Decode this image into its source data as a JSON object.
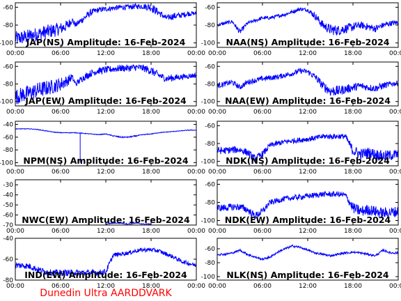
{
  "footer": "Dunedin Ultra AARDDVARK",
  "chart_data": [
    {
      "type": "line",
      "title": "JAP(NS) Amplitude: 16-Feb-2024",
      "ylim": [
        -105,
        -55
      ],
      "yticks": [
        "-60",
        "-80",
        "-100"
      ],
      "ytick_values": [
        -60,
        -80,
        -100
      ],
      "xticks": [
        "00:00",
        "06:00",
        "12:00",
        "18:00",
        "00:00"
      ],
      "xtick_values": [
        0,
        6,
        12,
        18,
        24
      ],
      "series": [
        {
          "color": "#0000ff",
          "x": [
            0,
            1,
            2,
            3,
            4,
            5,
            6,
            7,
            7.5,
            8,
            9,
            10,
            11,
            12,
            13,
            14,
            15,
            16,
            17,
            18,
            19,
            20,
            21,
            22,
            23,
            24
          ],
          "y": [
            -95,
            -94,
            -92,
            -90,
            -88,
            -86,
            -84,
            -80,
            -74,
            -80,
            -73,
            -66,
            -63,
            -62,
            -61,
            -60,
            -60,
            -59,
            -59,
            -60,
            -66,
            -72,
            -70,
            -69,
            -67,
            -67
          ],
          "noise": [
            8,
            8,
            8,
            8,
            8,
            8,
            7,
            6,
            4,
            3,
            4,
            4,
            3,
            3,
            3,
            3,
            3,
            3,
            3,
            5,
            4,
            3,
            4,
            3,
            3,
            2
          ]
        }
      ]
    },
    {
      "type": "line",
      "title": "NAA(NS) Amplitude: 16-Feb-2024",
      "ylim": [
        -105,
        -55
      ],
      "yticks": [
        "-60",
        "-80",
        "-100"
      ],
      "ytick_values": [
        -60,
        -80,
        -100
      ],
      "xticks": [
        "00:00",
        "06:00",
        "12:00",
        "18:00",
        "00:00"
      ],
      "xtick_values": [
        0,
        6,
        12,
        18,
        24
      ],
      "series": [
        {
          "color": "#0000ff",
          "x": [
            0,
            1,
            2,
            3,
            4,
            5,
            6,
            7,
            8,
            9,
            10,
            11,
            12,
            13,
            14,
            15,
            16,
            17,
            18,
            19,
            20,
            21,
            22,
            23,
            24
          ],
          "y": [
            -80,
            -78,
            -76,
            -88,
            -78,
            -75,
            -72,
            -72,
            -70,
            -68,
            -65,
            -62,
            -63,
            -70,
            -80,
            -85,
            -86,
            -84,
            -82,
            -80,
            -82,
            -84,
            -80,
            -78,
            -77
          ],
          "noise": [
            2,
            2,
            2,
            3,
            2,
            2,
            2,
            2,
            2,
            2,
            2,
            2,
            2,
            4,
            5,
            6,
            6,
            5,
            5,
            4,
            4,
            4,
            3,
            3,
            3
          ]
        }
      ]
    },
    {
      "type": "line",
      "title": "JAP(EW) Amplitude: 16-Feb-2024",
      "ylim": [
        -105,
        -55
      ],
      "yticks": [
        "-60",
        "-80",
        "-100"
      ],
      "ytick_values": [
        -60,
        -80,
        -100
      ],
      "xticks": [
        "00:00",
        "06:00",
        "12:00",
        "18:00",
        "00:00"
      ],
      "xtick_values": [
        0,
        6,
        12,
        18,
        24
      ],
      "series": [
        {
          "color": "#0000ff",
          "x": [
            0,
            1,
            2,
            3,
            4,
            5,
            6,
            7,
            7.5,
            8,
            9,
            10,
            11,
            12,
            13,
            14,
            15,
            16,
            17,
            18,
            19,
            20,
            21,
            22,
            23,
            24
          ],
          "y": [
            -95,
            -92,
            -90,
            -87,
            -85,
            -83,
            -80,
            -76,
            -72,
            -80,
            -73,
            -68,
            -65,
            -64,
            -63,
            -62,
            -62,
            -61,
            -62,
            -65,
            -70,
            -74,
            -73,
            -72,
            -71,
            -70
          ],
          "noise": [
            9,
            9,
            9,
            9,
            9,
            8,
            8,
            6,
            4,
            3,
            4,
            4,
            4,
            4,
            4,
            4,
            4,
            4,
            4,
            5,
            4,
            4,
            4,
            3,
            3,
            3
          ]
        }
      ]
    },
    {
      "type": "line",
      "title": "NAA(EW) Amplitude: 16-Feb-2024",
      "ylim": [
        -105,
        -55
      ],
      "yticks": [
        "-60",
        "-80",
        "-100"
      ],
      "ytick_values": [
        -60,
        -80,
        -100
      ],
      "xticks": [
        "00:00",
        "06:00",
        "12:00",
        "18:00",
        "00:00"
      ],
      "xtick_values": [
        0,
        6,
        12,
        18,
        24
      ],
      "series": [
        {
          "color": "#0000ff",
          "x": [
            0,
            1,
            2,
            3,
            4,
            5,
            6,
            7,
            8,
            9,
            10,
            11,
            12,
            13,
            14,
            15,
            16,
            17,
            18,
            19,
            20,
            21,
            22,
            23,
            24
          ],
          "y": [
            -82,
            -80,
            -78,
            -84,
            -78,
            -76,
            -74,
            -73,
            -72,
            -70,
            -68,
            -65,
            -66,
            -72,
            -82,
            -88,
            -88,
            -86,
            -84,
            -82,
            -84,
            -85,
            -82,
            -80,
            -79
          ],
          "noise": [
            3,
            3,
            3,
            3,
            3,
            3,
            3,
            3,
            3,
            3,
            3,
            3,
            3,
            4,
            5,
            6,
            6,
            5,
            5,
            4,
            4,
            4,
            4,
            3,
            3
          ]
        }
      ]
    },
    {
      "type": "line",
      "title": "NPM(NS) Amplitude: 16-Feb-2024",
      "ylim": [
        -105,
        -35
      ],
      "yticks": [
        "-40",
        "-60",
        "-80",
        "-100"
      ],
      "ytick_values": [
        -40,
        -60,
        -80,
        -100
      ],
      "xticks": [
        "00:00",
        "06:00",
        "12:00",
        "18:00",
        "00:00"
      ],
      "xtick_values": [
        0,
        6,
        12,
        18,
        24
      ],
      "series": [
        {
          "color": "#0000ff",
          "x": [
            0,
            1,
            2,
            3,
            4,
            5,
            6,
            7,
            8,
            9,
            10,
            11,
            12,
            13,
            14,
            15,
            16,
            17,
            18,
            19,
            20,
            21,
            22,
            23,
            24
          ],
          "y": [
            -47,
            -47,
            -47,
            -48,
            -50,
            -52,
            -53,
            -53,
            -53,
            -54,
            -55,
            -56,
            -55,
            -58,
            -60,
            -60,
            -58,
            -56,
            -55,
            -53,
            -52,
            -51,
            -50,
            -49,
            -49
          ],
          "noise": [
            0.5,
            0.5,
            0.5,
            0.5,
            0.5,
            0.5,
            0.5,
            0.5,
            0.5,
            0.5,
            0.5,
            0.5,
            0.5,
            0.8,
            1,
            1,
            0.8,
            0.6,
            0.5,
            0.5,
            0.5,
            0.5,
            0.5,
            0.5,
            0.5
          ]
        }
      ]
    },
    {
      "type": "line",
      "title": "NDK(NS) Amplitude: 16-Feb-2024",
      "ylim": [
        -105,
        -55
      ],
      "yticks": [
        "-60",
        "-80",
        "-100"
      ],
      "ytick_values": [
        -60,
        -80,
        -100
      ],
      "xticks": [
        "00:00",
        "06:00",
        "12:00",
        "18:00",
        "00:00"
      ],
      "xtick_values": [
        0,
        6,
        12,
        18,
        24
      ],
      "series": [
        {
          "color": "#0000ff",
          "x": [
            0,
            1,
            2,
            3,
            4,
            5,
            6,
            7,
            8,
            9,
            10,
            11,
            12,
            13,
            14,
            15,
            16,
            17,
            18,
            19,
            20,
            21,
            22,
            23,
            24
          ],
          "y": [
            -88,
            -88,
            -87,
            -87,
            -90,
            -97,
            -92,
            -82,
            -80,
            -78,
            -77,
            -76,
            -75,
            -74,
            -72,
            -72,
            -72,
            -72,
            -88,
            -92,
            -90,
            -92,
            -94,
            -93,
            -92
          ],
          "noise": [
            4,
            4,
            4,
            4,
            4,
            4,
            4,
            3,
            3,
            3,
            3,
            3,
            3,
            3,
            3,
            3,
            3,
            3,
            6,
            6,
            6,
            6,
            6,
            6,
            6
          ]
        }
      ]
    },
    {
      "type": "line",
      "title": "NWC(EW) Amplitude: 16-Feb-2024",
      "ylim": [
        -70,
        -25
      ],
      "yticks": [
        "-30",
        "-40",
        "-50",
        "-60",
        "-70"
      ],
      "ytick_values": [
        -30,
        -40,
        -50,
        -60,
        -70
      ],
      "xticks": [
        "00:00",
        "06:00",
        "12:00",
        "18:00",
        "00:00"
      ],
      "xtick_values": [
        0,
        6,
        12,
        18,
        24
      ],
      "series": [
        {
          "color": "#0000ff",
          "x": [
            12,
            13,
            14,
            15,
            16,
            17,
            18
          ],
          "y": [
            -69,
            -68,
            -68,
            -69,
            -68,
            -69,
            -69
          ],
          "noise": [
            0.5,
            0.5,
            0.5,
            0.5,
            0.5,
            0.5,
            0.5
          ]
        }
      ]
    },
    {
      "type": "line",
      "title": "NDK(EW) Amplitude: 16-Feb-2024",
      "ylim": [
        -105,
        -55
      ],
      "yticks": [
        "-60",
        "-80",
        "-100"
      ],
      "ytick_values": [
        -60,
        -80,
        -100
      ],
      "xticks": [
        "00:00",
        "06:00",
        "12:00",
        "18:00",
        "00:00"
      ],
      "xtick_values": [
        0,
        6,
        12,
        18,
        24
      ],
      "series": [
        {
          "color": "#0000ff",
          "x": [
            0,
            1,
            2,
            3,
            4,
            5,
            6,
            7,
            8,
            9,
            10,
            11,
            12,
            13,
            14,
            15,
            16,
            17,
            18,
            19,
            20,
            21,
            22,
            23,
            24
          ],
          "y": [
            -86,
            -86,
            -85,
            -85,
            -88,
            -95,
            -90,
            -80,
            -78,
            -76,
            -75,
            -74,
            -73,
            -72,
            -71,
            -71,
            -71,
            -72,
            -86,
            -90,
            -88,
            -90,
            -92,
            -91,
            -90
          ],
          "noise": [
            4,
            4,
            4,
            4,
            4,
            4,
            4,
            3,
            3,
            3,
            3,
            3,
            3,
            3,
            3,
            3,
            3,
            3,
            6,
            6,
            6,
            6,
            6,
            6,
            6
          ]
        }
      ]
    },
    {
      "type": "line",
      "title": "IND(EW) Amplitude: 16-Feb-2024",
      "ylim": [
        -80,
        -40
      ],
      "yticks": [
        "-40",
        "-60",
        "-80"
      ],
      "ytick_values": [
        -40,
        -60,
        -80
      ],
      "xticks": [
        "00:00",
        "06:00",
        "12:00",
        "18:00",
        "00:00"
      ],
      "xtick_values": [
        0,
        6,
        12,
        18,
        24
      ],
      "series": [
        {
          "color": "#0000ff",
          "x": [
            0,
            1,
            2,
            3,
            4,
            5,
            6,
            7,
            8,
            9,
            10,
            11,
            12,
            13,
            14,
            15,
            16,
            17,
            18,
            19,
            20,
            21,
            22,
            23,
            24
          ],
          "y": [
            -66,
            -66,
            -67,
            -70,
            -72,
            -73,
            -73,
            -73,
            -73,
            -73,
            -73,
            -73,
            -72,
            -56,
            -55,
            -54,
            -52,
            -51,
            -51,
            -52,
            -55,
            -58,
            -62,
            -64,
            -66
          ],
          "noise": [
            3,
            3,
            3,
            3,
            3,
            3,
            3,
            3,
            3,
            3,
            3,
            3,
            3,
            2,
            2,
            2,
            2,
            2,
            2,
            2,
            2,
            2,
            2,
            2,
            2
          ]
        }
      ]
    },
    {
      "type": "line",
      "title": "NLK(NS) Amplitude: 16-Feb-2024",
      "ylim": [
        -105,
        -45
      ],
      "yticks": [
        "-60",
        "-80",
        "-100"
      ],
      "ytick_values": [
        -60,
        -80,
        -100
      ],
      "xticks": [
        "00:00",
        "06:00",
        "12:00",
        "18:00",
        "00:00"
      ],
      "xtick_values": [
        0,
        6,
        12,
        18,
        24
      ],
      "series": [
        {
          "color": "#0000ff",
          "x": [
            0,
            1,
            2,
            3,
            4,
            5,
            6,
            7,
            8,
            9,
            10,
            11,
            12,
            13,
            14,
            15,
            16,
            17,
            18,
            19,
            20,
            21,
            22,
            23,
            24
          ],
          "y": [
            -68,
            -68,
            -66,
            -62,
            -68,
            -72,
            -75,
            -72,
            -65,
            -60,
            -56,
            -58,
            -62,
            -66,
            -68,
            -70,
            -68,
            -66,
            -65,
            -66,
            -68,
            -70,
            -62,
            -66,
            -66
          ],
          "noise": [
            1.5,
            1.5,
            1.5,
            1.5,
            1.5,
            1.5,
            1.5,
            1.5,
            1.5,
            1.5,
            1.5,
            1.5,
            1.5,
            1.5,
            1.5,
            1.5,
            1.5,
            1.5,
            1.5,
            1.5,
            1.5,
            1.5,
            1.5,
            1.5,
            1.5
          ]
        }
      ]
    }
  ]
}
